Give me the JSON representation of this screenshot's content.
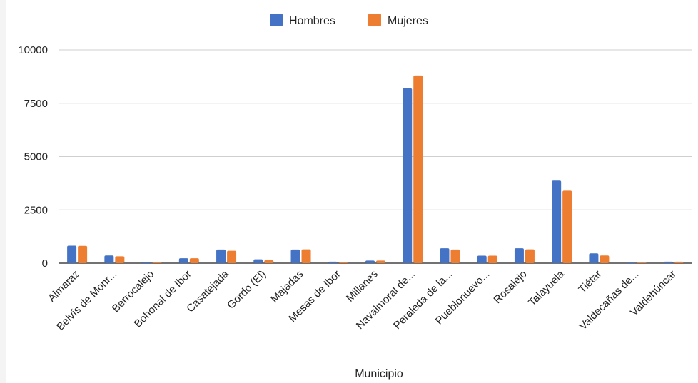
{
  "chart_data": {
    "type": "bar",
    "xlabel": "Municipio",
    "ylabel": "",
    "ylim": [
      0,
      10000
    ],
    "yticks": [
      0,
      2500,
      5000,
      7500,
      10000
    ],
    "grid": true,
    "legend_position": "top",
    "categories": [
      "Almaraz",
      "Belvís de Monr...",
      "Berrocalejo",
      "Bohonal de Ibor",
      "Casatejada",
      "Gordo (El)",
      "Majadas",
      "Mesas de Ibor",
      "Millanes",
      "Navalmoral de...",
      "Peraleda de la...",
      "Pueblonuevo...",
      "Rosalejo",
      "Talayuela",
      "Tiétar",
      "Valdecañas de...",
      "Valdehúncar"
    ],
    "series": [
      {
        "name": "Hombres",
        "color": "#4472c4",
        "values": [
          820,
          360,
          40,
          230,
          640,
          180,
          640,
          70,
          120,
          8200,
          700,
          350,
          700,
          3870,
          460,
          30,
          70
        ]
      },
      {
        "name": "Mujeres",
        "color": "#ed7d31",
        "values": [
          810,
          320,
          35,
          230,
          580,
          140,
          650,
          65,
          120,
          8800,
          640,
          350,
          650,
          3400,
          360,
          25,
          70
        ]
      }
    ]
  }
}
